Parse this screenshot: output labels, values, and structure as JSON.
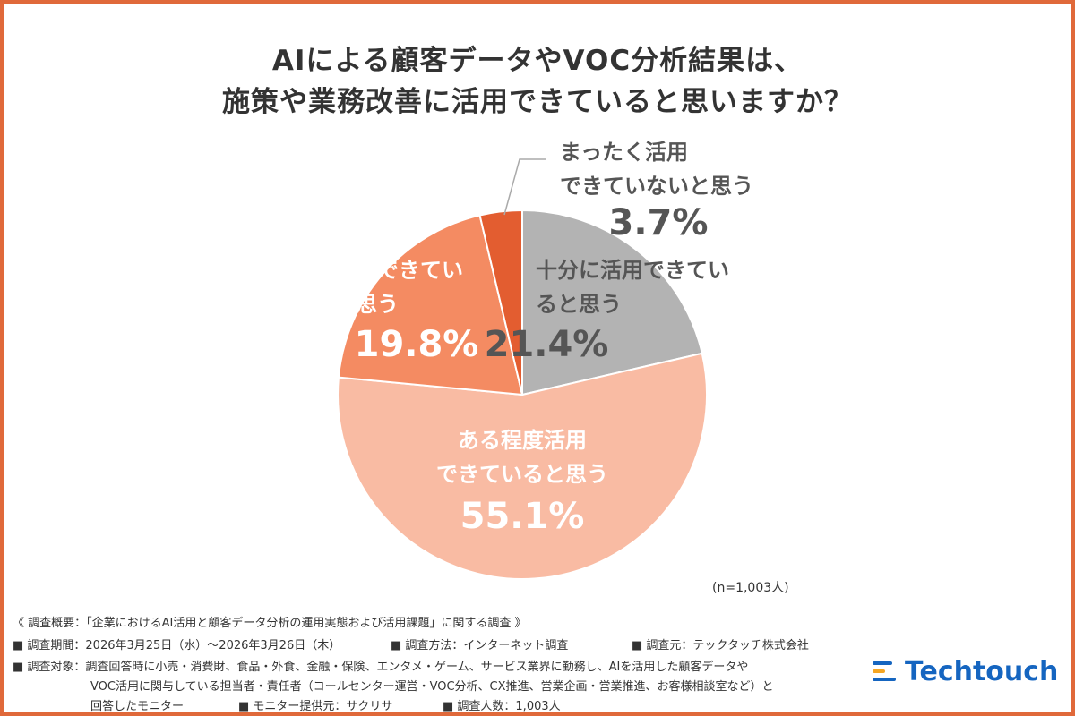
{
  "title_line1": "AIによる顧客データやVOC分析結果は、",
  "title_line2": "施策や業務改善に活用できていると思いますか？",
  "chart_data": {
    "type": "pie",
    "start_angle_deg": 0,
    "direction": "clockwise",
    "slices": [
      {
        "label_lines": [
          "十分に活用できてい",
          "ると思う"
        ],
        "value": 21.4,
        "value_text": "21.4%",
        "color": "#b3b3b3",
        "text_color": "#555555"
      },
      {
        "label_lines": [
          "ある程度活用",
          "できていると思う"
        ],
        "value": 55.1,
        "value_text": "55.1%",
        "color": "#f9bba3",
        "text_color": "#ffffff"
      },
      {
        "label_lines": [
          "やや活用できてい",
          "ないと思う"
        ],
        "value": 19.8,
        "value_text": "19.8%",
        "color": "#f48b62",
        "text_color": "#ffffff"
      },
      {
        "label_lines": [
          "まったく活用",
          "できていないと思う"
        ],
        "value": 3.7,
        "value_text": "3.7%",
        "color": "#e35d30",
        "text_color": "#555555"
      }
    ]
  },
  "sample_size": "(n=1,003人)",
  "footer": {
    "line1": "《 調査概要：「企業におけるAI活用と顧客データ分析の運用実態および活用課題」に関する調査 》",
    "period": "■ 調査期間：2026年3月25日（水）〜2026年3月26日（木）",
    "method": "■ 調査方法：インターネット調査",
    "org": "■ 調査元：テックタッチ株式会社",
    "target_a": "■ 調査対象：調査回答時に小売・消費財、食品・外食、金融・保険、エンタメ・ゲーム、サービス業界に勤務し、AIを活用した顧客データや",
    "target_b": "VOC活用に関与している担当者・責任者（コールセンター運営・VOC分析、CX推進、営業企画・営業推進、お客様相談室など）と",
    "target_c": "回答したモニター",
    "provider": "■ モニター提供元：サクリサ",
    "count": "■ 調査人数：1,003人"
  },
  "logo": {
    "text": "Techtouch",
    "color": "#1565c0"
  }
}
